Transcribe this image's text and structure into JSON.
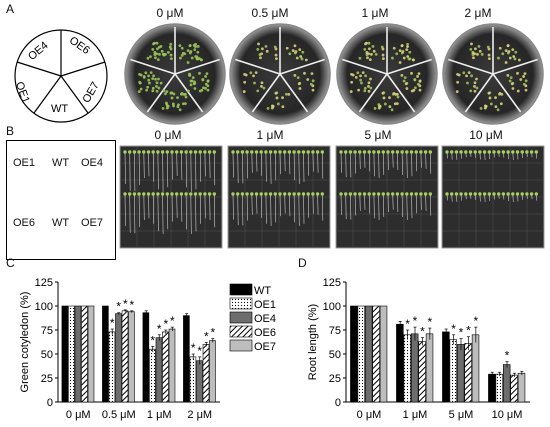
{
  "panels": {
    "a": {
      "label": "A",
      "layout": [
        "OE4",
        "OE6",
        "OE7",
        "WT",
        "OE1"
      ],
      "concentrations": [
        "0 μM",
        "0.5 μM",
        "1 μM",
        "2 μM"
      ]
    },
    "b": {
      "label": "B",
      "layout": [
        "OE1",
        "WT",
        "OE4",
        "OE6",
        "WT",
        "OE7"
      ],
      "concentrations": [
        "0 μM",
        "1 μM",
        "5 μM",
        "10 μM"
      ]
    },
    "c": {
      "label": "C"
    },
    "d": {
      "label": "D"
    }
  },
  "chart_data": [
    {
      "type": "bar",
      "title": "",
      "ylabel": "Green cotyledon (%)",
      "xlabel": "",
      "categories": [
        "0 μM",
        "0.5 μM",
        "1 μM",
        "2 μM"
      ],
      "ylim": [
        0,
        125
      ],
      "yticks": [
        0,
        25,
        50,
        75,
        100,
        125
      ],
      "series": [
        {
          "name": "WT",
          "values": [
            100,
            100,
            93,
            90
          ],
          "err": [
            0,
            0,
            2,
            2
          ],
          "sig": [
            "",
            "",
            "",
            ""
          ]
        },
        {
          "name": "OE1",
          "values": [
            100,
            73,
            55,
            47
          ],
          "err": [
            0,
            3,
            3,
            3
          ],
          "sig": [
            "",
            "*",
            "*",
            "*"
          ]
        },
        {
          "name": "OE4",
          "values": [
            100,
            92,
            67,
            43
          ],
          "err": [
            0,
            1,
            3,
            4
          ],
          "sig": [
            "",
            "*",
            "*",
            "*"
          ]
        },
        {
          "name": "OE6",
          "values": [
            100,
            95,
            73,
            60
          ],
          "err": [
            0,
            1,
            2,
            2
          ],
          "sig": [
            "",
            "*",
            "*",
            "*"
          ]
        },
        {
          "name": "OE7",
          "values": [
            100,
            94,
            76,
            64
          ],
          "err": [
            0,
            1,
            2,
            2
          ],
          "sig": [
            "",
            "*",
            "*",
            "*"
          ]
        }
      ],
      "legend": "right"
    },
    {
      "type": "bar",
      "title": "",
      "ylabel": "Root length (%)",
      "xlabel": "",
      "categories": [
        "0 μM",
        "1 μM",
        "5 μM",
        "10 μM"
      ],
      "ylim": [
        0,
        125
      ],
      "yticks": [
        0,
        25,
        50,
        75,
        100,
        125
      ],
      "series": [
        {
          "name": "WT",
          "values": [
            100,
            81,
            73,
            29
          ],
          "err": [
            0,
            3,
            3,
            2
          ],
          "sig": [
            "",
            "",
            "",
            ""
          ]
        },
        {
          "name": "OE1",
          "values": [
            100,
            70,
            65,
            29
          ],
          "err": [
            0,
            5,
            5,
            2
          ],
          "sig": [
            "",
            "*",
            "*",
            ""
          ]
        },
        {
          "name": "OE4",
          "values": [
            100,
            71,
            60,
            39
          ],
          "err": [
            0,
            7,
            6,
            3
          ],
          "sig": [
            "",
            "*",
            "*",
            "*"
          ]
        },
        {
          "name": "OE6",
          "values": [
            100,
            63,
            61,
            28
          ],
          "err": [
            0,
            4,
            7,
            2
          ],
          "sig": [
            "",
            "*",
            "*",
            ""
          ]
        },
        {
          "name": "OE7",
          "values": [
            100,
            71,
            70,
            30
          ],
          "err": [
            0,
            6,
            8,
            2
          ],
          "sig": [
            "",
            "*",
            "*",
            ""
          ]
        }
      ]
    }
  ],
  "colors": {
    "WT": "#000000",
    "OE1": "#ffffff",
    "OE4": "#6d6d6d",
    "OE6": "#ffffff",
    "OE7": "#bdbdbd",
    "plateDark": "#2b2b2b"
  }
}
